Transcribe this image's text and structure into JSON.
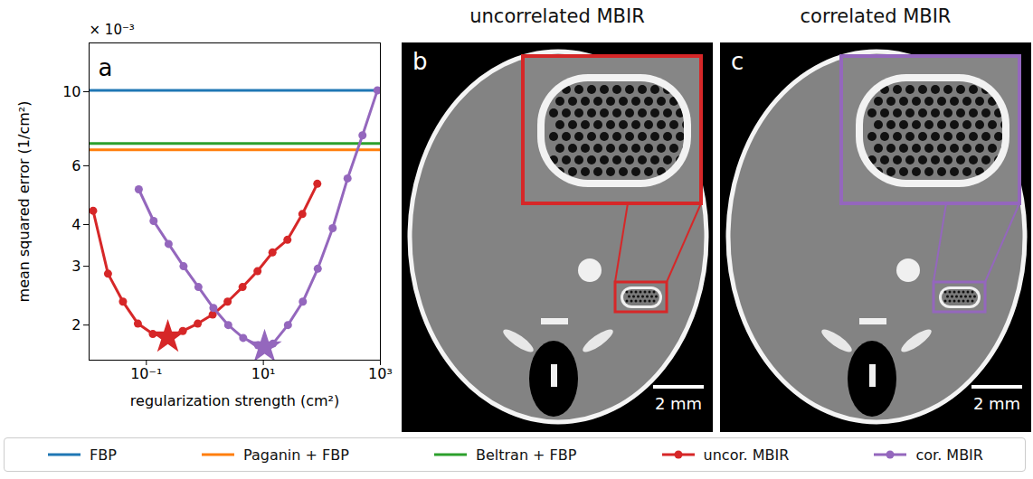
{
  "chart_data": [
    {
      "type": "line",
      "annotations": [
        "a",
        "× 10⁻³"
      ],
      "x_label": "regularization strength (cm²)",
      "y_label": "mean squared error (1/cm²)",
      "log": true,
      "grid": false,
      "legend": "bottom",
      "xlim": [
        0.0105,
        1000
      ],
      "xticks": [
        {
          "value": 0.1,
          "label": "10⁻¹"
        },
        {
          "value": 10,
          "label": "10¹"
        },
        {
          "value": 1000,
          "label": "10³"
        }
      ],
      "ylim": [
        1.57,
        14
      ],
      "yticks": [
        2,
        3,
        4,
        6,
        10
      ],
      "series": [
        {
          "name": "FBP",
          "color": "#1f77b4",
          "type": "hline",
          "values": [
            10.1
          ]
        },
        {
          "name": "Paganin + FBP",
          "color": "#ff7f0e",
          "type": "hline",
          "values": [
            6.7
          ]
        },
        {
          "name": "Beltran + FBP",
          "color": "#2ca02c",
          "type": "hline",
          "values": [
            7.0
          ]
        },
        {
          "name": "uncor. MBIR",
          "color": "#d62728",
          "type": "line",
          "marker": "circle",
          "x": [
            0.0123,
            0.0221,
            0.0398,
            0.0716,
            0.129,
            0.233,
            0.42,
            0.755,
            1.36,
            2.45,
            4.41,
            7.94,
            14.3,
            25.8,
            46.4,
            83.6
          ],
          "values": [
            4.4,
            2.85,
            2.35,
            2.02,
            1.88,
            1.84,
            1.92,
            2.02,
            2.15,
            2.35,
            2.6,
            2.9,
            3.3,
            3.6,
            4.3,
            5.3
          ],
          "optimum": {
            "x": 0.233,
            "y": 1.84
          }
        },
        {
          "name": "cor. MBIR",
          "color": "#9467bd",
          "type": "line",
          "marker": "circle",
          "x": [
            0.0741,
            0.133,
            0.24,
            0.432,
            0.776,
            1.4,
            2.51,
            4.52,
            8.13,
            14.6,
            26.3,
            47.3,
            85.1,
            153,
            275,
            495,
            891
          ],
          "values": [
            5.1,
            4.1,
            3.5,
            3.0,
            2.6,
            2.25,
            2.0,
            1.83,
            1.74,
            1.76,
            2.0,
            2.35,
            2.95,
            3.9,
            5.5,
            7.4,
            10.1
          ],
          "optimum": {
            "x": 10.5,
            "y": 1.72
          }
        }
      ]
    },
    {
      "type": "image",
      "title": "uncorrelated MBIR",
      "color": "#d62728",
      "annotations": [
        "b",
        "2 mm"
      ]
    },
    {
      "type": "image",
      "title": "correlated MBIR",
      "color": "#9467bd",
      "annotations": [
        "c",
        "2 mm"
      ]
    }
  ]
}
